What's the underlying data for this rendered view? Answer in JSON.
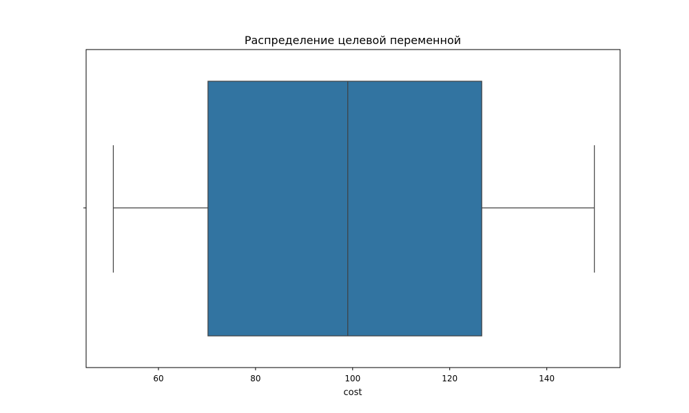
{
  "chart_data": {
    "type": "box",
    "title": "Распределение целевой переменной",
    "xlabel": "cost",
    "ylabel": "",
    "xlim": [
      45.1,
      155.1
    ],
    "xticks": [
      60,
      80,
      100,
      120,
      140
    ],
    "orientation": "horizontal",
    "grid": false,
    "box": {
      "whisker_low": 50.7,
      "q1": 70.2,
      "median": 99.0,
      "q3": 126.6,
      "whisker_high": 149.8,
      "color": "#3274a1",
      "line_color": "#3f3f3f"
    }
  }
}
